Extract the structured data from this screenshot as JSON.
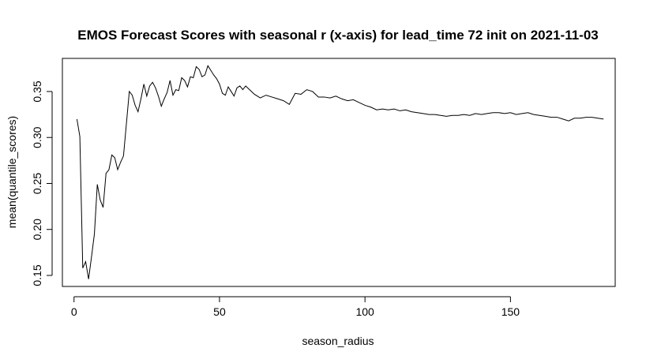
{
  "chart_data": {
    "type": "line",
    "title": "EMOS Forecast Scores with seasonal r (x-axis) for lead_time 72 init on 2021-11-03",
    "xlabel": "season_radius",
    "ylabel": "mean(quantile_scores)",
    "xlim": [
      -4,
      186
    ],
    "ylim": [
      0.138,
      0.386
    ],
    "x_ticks": [
      0,
      50,
      100,
      150
    ],
    "y_ticks": [
      0.15,
      0.2,
      0.25,
      0.3,
      0.35
    ],
    "x_tick_labels": [
      "0",
      "50",
      "100",
      "150"
    ],
    "y_tick_labels": [
      "0.15",
      "0.20",
      "0.25",
      "0.30",
      "0.35"
    ],
    "grid": false,
    "legend": "none",
    "line_color": "#000000",
    "series": [
      {
        "x": [
          1,
          2,
          3,
          4,
          5,
          6,
          7,
          8,
          9,
          10,
          11,
          12,
          13,
          14,
          15,
          16,
          17,
          18,
          19,
          20,
          21,
          22,
          23,
          24,
          25,
          26,
          27,
          28,
          29,
          30,
          31,
          32,
          33,
          34,
          35,
          36,
          37,
          38,
          39,
          40,
          41,
          42,
          43,
          44,
          45,
          46,
          47,
          48,
          49,
          50,
          51,
          52,
          53,
          54,
          55,
          56,
          57,
          58,
          59,
          60,
          62,
          64,
          66,
          68,
          70,
          72,
          74,
          76,
          78,
          80,
          82,
          84,
          86,
          88,
          90,
          92,
          94,
          96,
          98,
          100,
          102,
          104,
          106,
          108,
          110,
          112,
          114,
          116,
          118,
          120,
          122,
          124,
          126,
          128,
          130,
          132,
          134,
          136,
          138,
          140,
          142,
          144,
          146,
          148,
          150,
          152,
          154,
          156,
          158,
          160,
          162,
          164,
          166,
          168,
          170,
          172,
          174,
          176,
          178,
          180,
          182
        ],
        "y": [
          0.32,
          0.301,
          0.158,
          0.165,
          0.146,
          0.17,
          0.195,
          0.249,
          0.232,
          0.224,
          0.261,
          0.265,
          0.281,
          0.278,
          0.265,
          0.273,
          0.28,
          0.315,
          0.35,
          0.346,
          0.335,
          0.328,
          0.342,
          0.358,
          0.345,
          0.356,
          0.36,
          0.354,
          0.345,
          0.334,
          0.342,
          0.349,
          0.362,
          0.346,
          0.352,
          0.351,
          0.365,
          0.362,
          0.355,
          0.366,
          0.365,
          0.377,
          0.374,
          0.366,
          0.368,
          0.378,
          0.373,
          0.368,
          0.364,
          0.358,
          0.348,
          0.346,
          0.355,
          0.35,
          0.345,
          0.354,
          0.356,
          0.352,
          0.356,
          0.353,
          0.347,
          0.343,
          0.346,
          0.344,
          0.342,
          0.34,
          0.336,
          0.348,
          0.347,
          0.352,
          0.35,
          0.344,
          0.344,
          0.343,
          0.345,
          0.342,
          0.34,
          0.341,
          0.338,
          0.335,
          0.333,
          0.33,
          0.331,
          0.33,
          0.331,
          0.329,
          0.33,
          0.328,
          0.327,
          0.326,
          0.325,
          0.325,
          0.324,
          0.323,
          0.324,
          0.324,
          0.325,
          0.324,
          0.326,
          0.325,
          0.326,
          0.327,
          0.327,
          0.326,
          0.327,
          0.325,
          0.326,
          0.327,
          0.325,
          0.324,
          0.323,
          0.322,
          0.322,
          0.32,
          0.318,
          0.321,
          0.321,
          0.322,
          0.322,
          0.321,
          0.32
        ]
      }
    ]
  }
}
